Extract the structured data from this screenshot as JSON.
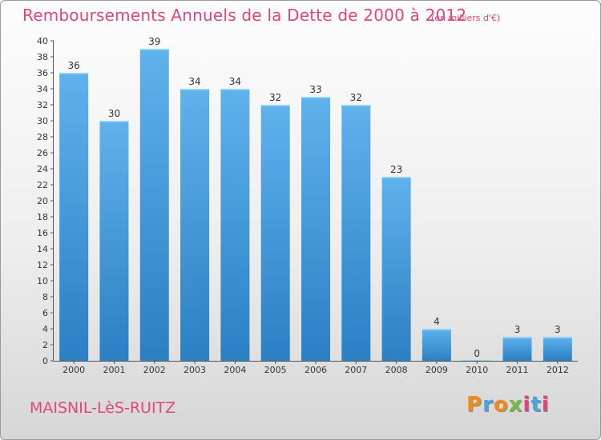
{
  "header": {
    "title": "Remboursements Annuels de la Dette de 2000 à 2012",
    "unit": "(en milliers d'€)"
  },
  "footer": {
    "commune": "MAISNIL-LèS-RUITZ",
    "logo": "Proxiti",
    "logo_colors": [
      "#f08a1c",
      "#4aa3df",
      "#f08a1c",
      "#7ab648",
      "#e0457b",
      "#4aa3df",
      "#e0457b"
    ]
  },
  "colors": {
    "title": "#e0457b",
    "bar_top": "#5fb2ec",
    "bar_bottom": "#2b7fc3",
    "axis": "#555555",
    "text": "#333333"
  },
  "chart_data": {
    "type": "bar",
    "title": "Remboursements Annuels de la Dette de 2000 à 2012",
    "xlabel": "",
    "ylabel": "",
    "categories": [
      "2000",
      "2001",
      "2002",
      "2003",
      "2004",
      "2005",
      "2006",
      "2007",
      "2008",
      "2009",
      "2010",
      "2011",
      "2012"
    ],
    "values": [
      36,
      30,
      39,
      34,
      34,
      32,
      33,
      32,
      23,
      4,
      0,
      3,
      3
    ],
    "ylim": [
      0,
      40
    ],
    "yticks": [
      0,
      2,
      4,
      6,
      8,
      10,
      12,
      14,
      16,
      18,
      20,
      22,
      24,
      26,
      28,
      30,
      32,
      34,
      36,
      38,
      40
    ],
    "grid": false,
    "legend": "none"
  }
}
